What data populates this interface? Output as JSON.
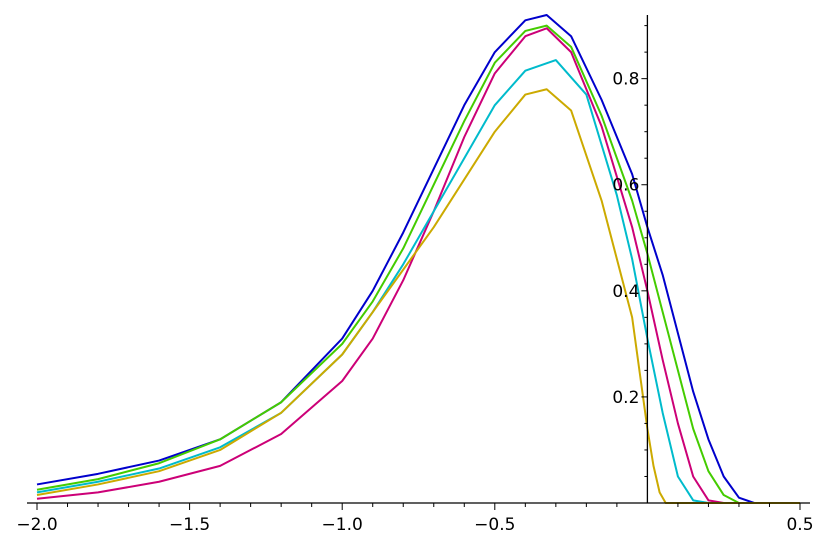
{
  "chart_data": {
    "type": "line",
    "title": "",
    "xlabel": "",
    "ylabel": "",
    "xlim": [
      -2.0,
      0.5
    ],
    "ylim": [
      0.0,
      0.92
    ],
    "grid": false,
    "legend": "none",
    "x_ticks": [
      -2.0,
      -1.5,
      -1.0,
      -0.5,
      0.5
    ],
    "x_tick_labels": [
      "−2.0",
      "−1.5",
      "−1.0",
      "−0.5",
      "0.5"
    ],
    "y_ticks": [
      0.2,
      0.4,
      0.6,
      0.8
    ],
    "y_tick_labels": [
      "0.2",
      "0.4",
      "0.6",
      "0.8"
    ],
    "series": [
      {
        "color": "#0000cc",
        "points": [
          [
            -2.0,
            0.035
          ],
          [
            -1.8,
            0.055
          ],
          [
            -1.6,
            0.08
          ],
          [
            -1.4,
            0.12
          ],
          [
            -1.2,
            0.19
          ],
          [
            -1.0,
            0.31
          ],
          [
            -0.9,
            0.4
          ],
          [
            -0.8,
            0.51
          ],
          [
            -0.7,
            0.63
          ],
          [
            -0.6,
            0.75
          ],
          [
            -0.5,
            0.85
          ],
          [
            -0.4,
            0.91
          ],
          [
            -0.33,
            0.92
          ],
          [
            -0.25,
            0.88
          ],
          [
            -0.15,
            0.76
          ],
          [
            -0.05,
            0.62
          ],
          [
            0.0,
            0.52
          ],
          [
            0.05,
            0.43
          ],
          [
            0.1,
            0.32
          ],
          [
            0.15,
            0.21
          ],
          [
            0.2,
            0.12
          ],
          [
            0.25,
            0.05
          ],
          [
            0.3,
            0.01
          ],
          [
            0.35,
            0.0
          ],
          [
            0.5,
            0.0
          ]
        ]
      },
      {
        "color": "#44cc00",
        "points": [
          [
            -2.0,
            0.025
          ],
          [
            -1.8,
            0.045
          ],
          [
            -1.6,
            0.075
          ],
          [
            -1.4,
            0.12
          ],
          [
            -1.2,
            0.19
          ],
          [
            -1.0,
            0.3
          ],
          [
            -0.9,
            0.38
          ],
          [
            -0.8,
            0.48
          ],
          [
            -0.7,
            0.6
          ],
          [
            -0.6,
            0.72
          ],
          [
            -0.5,
            0.83
          ],
          [
            -0.4,
            0.89
          ],
          [
            -0.33,
            0.9
          ],
          [
            -0.25,
            0.86
          ],
          [
            -0.15,
            0.73
          ],
          [
            -0.05,
            0.57
          ],
          [
            0.0,
            0.47
          ],
          [
            0.05,
            0.36
          ],
          [
            0.1,
            0.25
          ],
          [
            0.15,
            0.14
          ],
          [
            0.2,
            0.06
          ],
          [
            0.25,
            0.015
          ],
          [
            0.3,
            0.0
          ],
          [
            0.5,
            0.0
          ]
        ]
      },
      {
        "color": "#cc0077",
        "points": [
          [
            -2.0,
            0.008
          ],
          [
            -1.8,
            0.02
          ],
          [
            -1.6,
            0.04
          ],
          [
            -1.4,
            0.07
          ],
          [
            -1.2,
            0.13
          ],
          [
            -1.0,
            0.23
          ],
          [
            -0.9,
            0.31
          ],
          [
            -0.8,
            0.42
          ],
          [
            -0.7,
            0.55
          ],
          [
            -0.6,
            0.69
          ],
          [
            -0.5,
            0.81
          ],
          [
            -0.4,
            0.88
          ],
          [
            -0.33,
            0.895
          ],
          [
            -0.25,
            0.85
          ],
          [
            -0.15,
            0.71
          ],
          [
            -0.05,
            0.52
          ],
          [
            0.0,
            0.4
          ],
          [
            0.05,
            0.27
          ],
          [
            0.1,
            0.15
          ],
          [
            0.15,
            0.05
          ],
          [
            0.2,
            0.005
          ],
          [
            0.25,
            0.0
          ],
          [
            0.5,
            0.0
          ]
        ]
      },
      {
        "color": "#00bbcc",
        "points": [
          [
            -2.0,
            0.02
          ],
          [
            -1.8,
            0.04
          ],
          [
            -1.6,
            0.065
          ],
          [
            -1.4,
            0.105
          ],
          [
            -1.2,
            0.17
          ],
          [
            -1.0,
            0.28
          ],
          [
            -0.9,
            0.36
          ],
          [
            -0.8,
            0.45
          ],
          [
            -0.7,
            0.55
          ],
          [
            -0.6,
            0.65
          ],
          [
            -0.5,
            0.75
          ],
          [
            -0.4,
            0.815
          ],
          [
            -0.3,
            0.835
          ],
          [
            -0.2,
            0.77
          ],
          [
            -0.1,
            0.58
          ],
          [
            -0.05,
            0.46
          ],
          [
            0.0,
            0.31
          ],
          [
            0.05,
            0.17
          ],
          [
            0.1,
            0.05
          ],
          [
            0.15,
            0.005
          ],
          [
            0.2,
            0.0
          ],
          [
            0.5,
            0.0
          ]
        ]
      },
      {
        "color": "#ccaa00",
        "points": [
          [
            -2.0,
            0.015
          ],
          [
            -1.8,
            0.035
          ],
          [
            -1.6,
            0.06
          ],
          [
            -1.4,
            0.1
          ],
          [
            -1.2,
            0.17
          ],
          [
            -1.0,
            0.28
          ],
          [
            -0.9,
            0.36
          ],
          [
            -0.8,
            0.44
          ],
          [
            -0.7,
            0.52
          ],
          [
            -0.6,
            0.61
          ],
          [
            -0.5,
            0.7
          ],
          [
            -0.4,
            0.77
          ],
          [
            -0.33,
            0.78
          ],
          [
            -0.25,
            0.74
          ],
          [
            -0.15,
            0.57
          ],
          [
            -0.05,
            0.35
          ],
          [
            0.0,
            0.14
          ],
          [
            0.02,
            0.07
          ],
          [
            0.04,
            0.02
          ],
          [
            0.06,
            0.0
          ],
          [
            0.5,
            0.0
          ]
        ]
      }
    ]
  }
}
